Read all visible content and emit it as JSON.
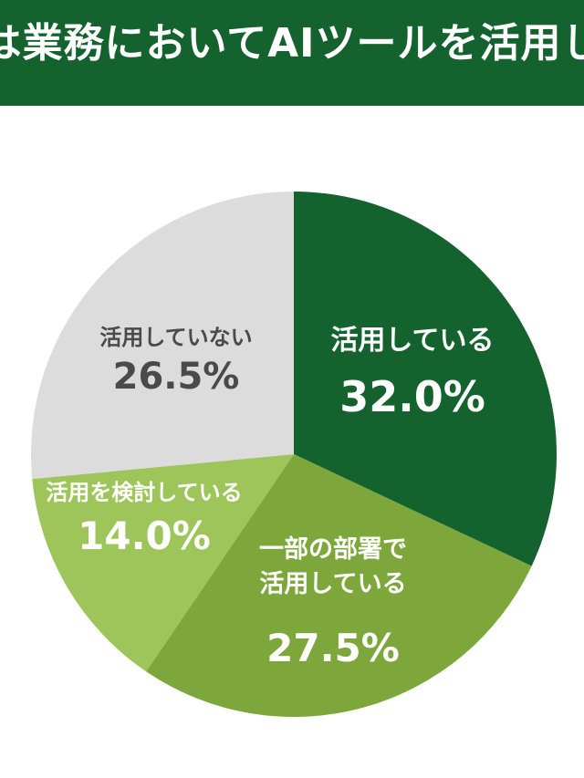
{
  "title": "は業務においてAIツールを活用し",
  "colors": {
    "title_background": "#14632f",
    "title_text": "#ffffff"
  },
  "chart_data": {
    "type": "pie",
    "start": "top, clockwise",
    "slices": [
      {
        "label_lines": [
          "活用している"
        ],
        "value": 32.0,
        "value_label": "32.0%",
        "color": "#14632f",
        "text_color": "#ffffff"
      },
      {
        "label_lines": [
          "一部の部署で",
          "活用している"
        ],
        "value": 27.5,
        "value_label": "27.5%",
        "color": "#7da73a",
        "text_color": "#ffffff"
      },
      {
        "label_lines": [
          "活用を検討している"
        ],
        "value": 14.0,
        "value_label": "14.0%",
        "color": "#9ec55a",
        "text_color": "#ffffff"
      },
      {
        "label_lines": [
          "活用していない"
        ],
        "value": 26.5,
        "value_label": "26.5%",
        "color": "#dcdcdc",
        "text_color": "#4a4a4a"
      }
    ]
  }
}
